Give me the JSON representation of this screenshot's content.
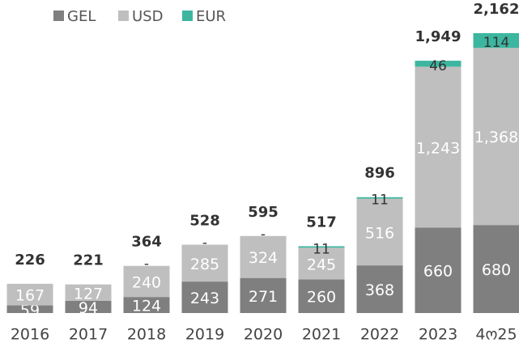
{
  "chart_data": {
    "type": "stacked_bar",
    "categories": [
      "2016",
      "2017",
      "2018",
      "2019",
      "2020",
      "2021",
      "2022",
      "2023",
      "4ო25"
    ],
    "series": [
      {
        "name": "GEL",
        "color": "#7f7f7f",
        "values": [
          59,
          94,
          124,
          243,
          271,
          260,
          368,
          660,
          680
        ]
      },
      {
        "name": "USD",
        "color": "#bfbfbf",
        "values": [
          167,
          127,
          240,
          285,
          324,
          245,
          516,
          1243,
          1368
        ],
        "value_labels": [
          "167",
          "127",
          "240",
          "285",
          "324",
          "245",
          "516",
          "1,243",
          "1,368"
        ]
      },
      {
        "name": "EUR",
        "color": "#3db6a0",
        "values": [
          null,
          null,
          0,
          0,
          0,
          11,
          11,
          46,
          114
        ],
        "value_labels": [
          null,
          null,
          "-",
          "-",
          "-",
          "11",
          "11",
          "46",
          "114"
        ]
      }
    ],
    "totals": {
      "values": [
        226,
        221,
        364,
        528,
        595,
        517,
        896,
        1949,
        2162
      ],
      "value_labels": [
        "226",
        "221",
        "364",
        "528",
        "595",
        "517",
        "896",
        "1,949",
        "2,162"
      ]
    },
    "legend": "top-left"
  }
}
